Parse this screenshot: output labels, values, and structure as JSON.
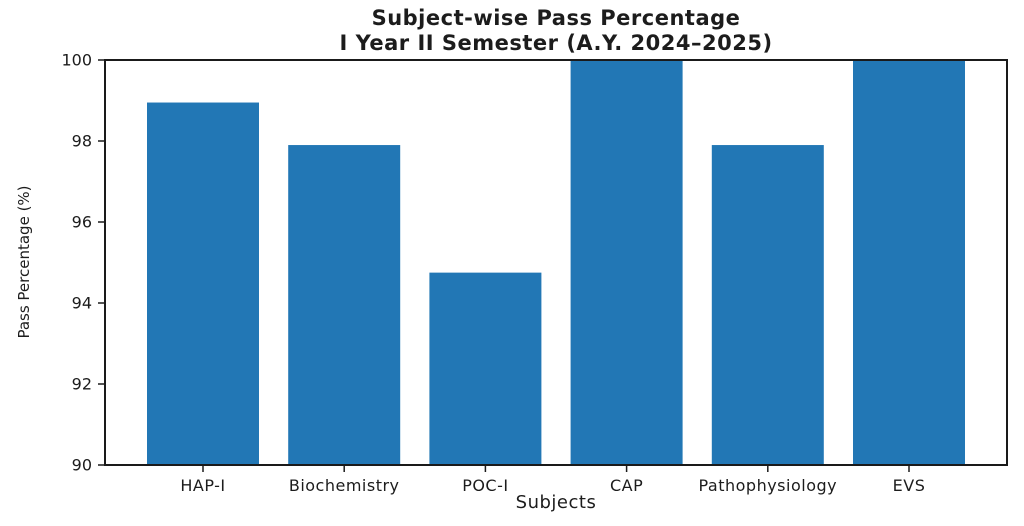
{
  "chart_data": {
    "type": "bar",
    "title": "Subject-wise Pass Percentage",
    "subtitle": "I Year II Semester (A.Y. 2024–2025)",
    "xlabel": "Subjects",
    "ylabel": "Pass Percentage (%)",
    "categories": [
      "HAP-I",
      "Biochemistry",
      "POC-I",
      "CAP",
      "Pathophysiology",
      "EVS"
    ],
    "values": [
      98.95,
      97.9,
      94.75,
      100,
      97.9,
      100
    ],
    "ylim": [
      90,
      100
    ],
    "yticks": [
      90,
      92,
      94,
      96,
      98,
      100
    ],
    "grid": false,
    "legend": "none",
    "bar_color": "#2277b5",
    "axis_color": "#1a1a1a",
    "text_color": "#1c1c1c",
    "background_color": "#ffffff"
  }
}
